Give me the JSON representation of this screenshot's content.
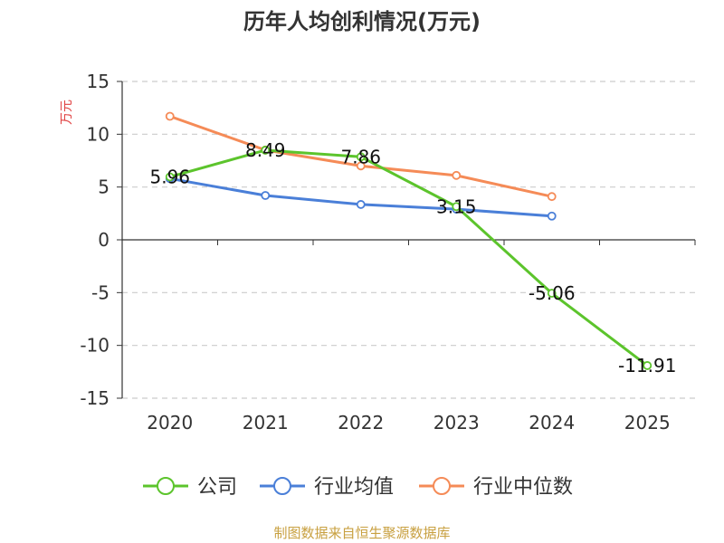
{
  "page": {
    "title": "历年人均创利情况(万元)",
    "source": "制图数据来自恒生聚源数据库"
  },
  "chart_data": {
    "type": "line",
    "title": "历年人均创利情况(万元)",
    "ylabel": "万元",
    "categories": [
      "2020",
      "2021",
      "2022",
      "2023",
      "2024",
      "2025"
    ],
    "ylim": [
      -15,
      15
    ],
    "yticks": [
      15,
      10,
      5,
      0,
      -5,
      -10,
      -15
    ],
    "grid": true,
    "legend_position": "bottom",
    "series": [
      {
        "name": "公司",
        "color": "#5cc42c",
        "values": [
          5.96,
          8.49,
          7.86,
          3.15,
          -5.06,
          -11.91
        ],
        "labels": [
          "5.96",
          "8.49",
          "7.86",
          "3.15",
          "-5.06",
          "-11.91"
        ]
      },
      {
        "name": "行业均值",
        "color": "#4a7fd8",
        "values": [
          5.8,
          4.2,
          3.35,
          2.9,
          2.25,
          null
        ]
      },
      {
        "name": "行业中位数",
        "color": "#f58b57",
        "values": [
          11.7,
          8.5,
          7.0,
          6.1,
          4.1,
          null
        ]
      }
    ]
  }
}
